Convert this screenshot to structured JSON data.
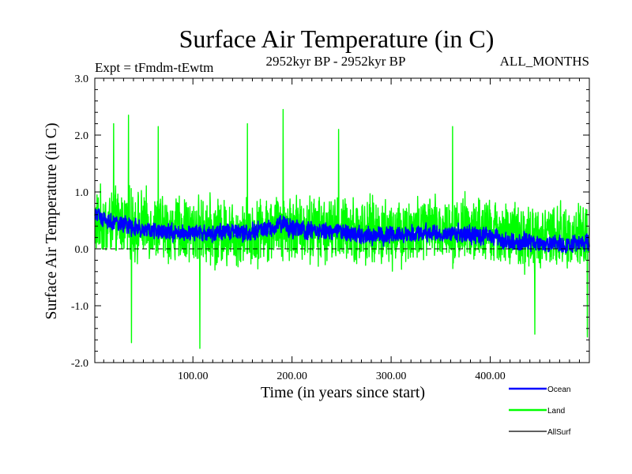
{
  "chart_data": {
    "type": "line",
    "title": "Surface Air Temperature (in C)",
    "subtitle_left": "Expt = tFmdm-tEwtm",
    "subtitle_center": "2952kyr BP - 2952kyr BP",
    "subtitle_right": "ALL_MONTHS",
    "xlabel": "Time (in years since start)",
    "ylabel": "Surface Air Temperature (in C)",
    "xlim": [
      1,
      500
    ],
    "ylim": [
      -2.0,
      3.0
    ],
    "x_ticks": [
      {
        "value": 100,
        "label": "100.00"
      },
      {
        "value": 200,
        "label": "200.00"
      },
      {
        "value": 300,
        "label": "300.00"
      },
      {
        "value": 400,
        "label": "400.00"
      }
    ],
    "y_ticks": [
      {
        "value": 3.0,
        "label": "3.0"
      },
      {
        "value": 2.0,
        "label": "2.0"
      },
      {
        "value": 1.0,
        "label": "1.0"
      },
      {
        "value": 0.0,
        "label": "0.0"
      },
      {
        "value": -1.0,
        "label": "-1.0"
      },
      {
        "value": -2.0,
        "label": "-2.0"
      }
    ],
    "zero_line": true,
    "x_step_years": 0.25,
    "series": [
      {
        "name": "Land",
        "color": "#00ff00",
        "anchor_x": [
          1,
          25,
          50,
          75,
          100,
          125,
          150,
          175,
          190,
          200,
          225,
          250,
          275,
          300,
          325,
          350,
          375,
          400,
          425,
          450,
          475,
          500
        ],
        "anchor_mean": [
          0.45,
          0.45,
          0.4,
          0.35,
          0.32,
          0.3,
          0.3,
          0.35,
          0.4,
          0.38,
          0.35,
          0.35,
          0.3,
          0.3,
          0.32,
          0.35,
          0.35,
          0.3,
          0.22,
          0.2,
          0.22,
          0.25
        ],
        "noise_amplitude": 0.65,
        "peaks": [
          {
            "x": 191,
            "value": 2.45
          },
          {
            "x": 20,
            "value": 2.2
          },
          {
            "x": 35,
            "value": 2.35
          },
          {
            "x": 65,
            "value": 2.15
          },
          {
            "x": 155,
            "value": 2.2
          },
          {
            "x": 247,
            "value": 2.1
          },
          {
            "x": 362,
            "value": 2.15
          },
          {
            "x": 107,
            "value": -1.75
          },
          {
            "x": 38,
            "value": -1.65
          },
          {
            "x": 445,
            "value": -1.5
          },
          {
            "x": 498,
            "value": -1.55
          }
        ]
      },
      {
        "name": "Ocean",
        "color": "#0000ff",
        "anchor_x": [
          1,
          10,
          25,
          50,
          75,
          100,
          125,
          150,
          175,
          190,
          200,
          225,
          250,
          275,
          300,
          325,
          350,
          375,
          400,
          425,
          450,
          475,
          500
        ],
        "anchor_mean": [
          0.65,
          0.5,
          0.45,
          0.35,
          0.3,
          0.3,
          0.28,
          0.28,
          0.33,
          0.45,
          0.35,
          0.3,
          0.3,
          0.22,
          0.25,
          0.28,
          0.27,
          0.27,
          0.22,
          0.12,
          0.1,
          0.08,
          0.1
        ],
        "noise_amplitude": 0.17
      },
      {
        "name": "AllSurf",
        "color": "#000000",
        "anchor_x": [],
        "anchor_mean": [],
        "noise_amplitude": 0
      }
    ],
    "legend": [
      {
        "label": "Ocean",
        "color": "#0000ff"
      },
      {
        "label": "Land",
        "color": "#00ff00"
      },
      {
        "label": "AllSurf",
        "color": "#000000"
      }
    ],
    "legend_position": "bottom-right"
  }
}
